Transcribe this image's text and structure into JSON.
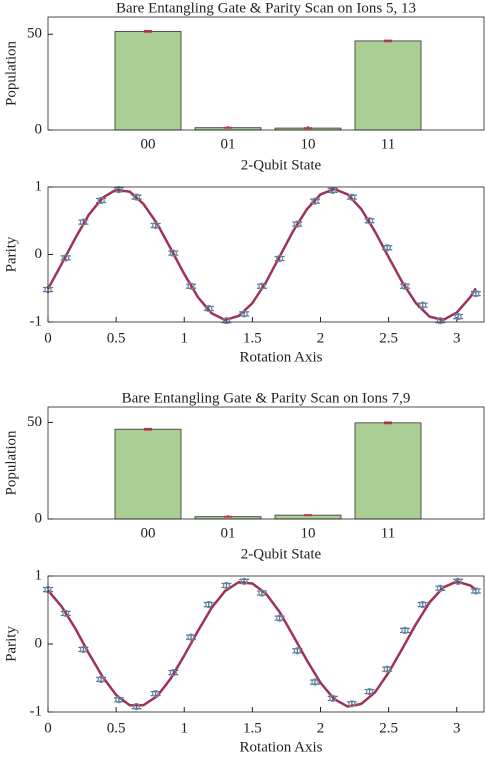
{
  "chart_data": [
    {
      "type": "bar",
      "title": "Bare Entangling Gate & Parity Scan on Ions 5, 13",
      "xlabel": "2-Qubit State",
      "ylabel": "Population",
      "categories": [
        "00",
        "01",
        "10",
        "11"
      ],
      "values": [
        51.5,
        1.2,
        1.0,
        46.5
      ],
      "errors": [
        0.4,
        0.2,
        0.2,
        0.4
      ],
      "color": "#a9cf94",
      "error_color": "#c8324a",
      "ylim": [
        0,
        59
      ],
      "yticks": [
        0,
        50
      ]
    },
    {
      "type": "line",
      "xlabel": "Rotation Axis",
      "ylabel": "Parity",
      "series": [
        {
          "color": "#6d8fa8",
          "marker": "circle",
          "x": [
            0,
            0.13,
            0.26,
            0.39,
            0.52,
            0.65,
            0.79,
            0.92,
            1.05,
            1.18,
            1.31,
            1.44,
            1.57,
            1.7,
            1.83,
            1.96,
            2.09,
            2.23,
            2.36,
            2.49,
            2.62,
            2.75,
            2.88,
            3.01,
            3.14
          ],
          "values": [
            -0.52,
            -0.05,
            0.48,
            0.8,
            0.96,
            0.85,
            0.43,
            0.02,
            -0.47,
            -0.8,
            -0.98,
            -0.88,
            -0.47,
            -0.06,
            0.45,
            0.79,
            0.95,
            0.85,
            0.5,
            0.1,
            -0.47,
            -0.75,
            -0.98,
            -0.92,
            -0.58
          ],
          "errors": [
            0.03,
            0.03,
            0.03,
            0.03,
            0.03,
            0.03,
            0.03,
            0.03,
            0.03,
            0.03,
            0.03,
            0.03,
            0.03,
            0.03,
            0.03,
            0.03,
            0.03,
            0.03,
            0.03,
            0.03,
            0.03,
            0.03,
            0.03,
            0.03,
            0.03
          ]
        },
        {
          "color": "#a0325a",
          "x": [
            0,
            0.1,
            0.2,
            0.3,
            0.4,
            0.5,
            0.6,
            0.7,
            0.8,
            0.9,
            1.0,
            1.1,
            1.2,
            1.3,
            1.4,
            1.5,
            1.6,
            1.7,
            1.8,
            1.9,
            2.0,
            2.1,
            2.2,
            2.3,
            2.4,
            2.5,
            2.6,
            2.7,
            2.8,
            2.9,
            3.0,
            3.1,
            3.14
          ],
          "values": [
            -0.51,
            -0.14,
            0.24,
            0.59,
            0.84,
            0.96,
            0.93,
            0.75,
            0.46,
            0.09,
            -0.29,
            -0.63,
            -0.87,
            -0.97,
            -0.91,
            -0.72,
            -0.41,
            -0.03,
            0.35,
            0.67,
            0.89,
            0.97,
            0.89,
            0.67,
            0.34,
            -0.04,
            -0.41,
            -0.72,
            -0.92,
            -0.97,
            -0.86,
            -0.63,
            -0.5
          ]
        }
      ],
      "xlim": [
        0,
        3.2
      ],
      "xticks": [
        0,
        0.5,
        1,
        1.5,
        2,
        2.5,
        3
      ],
      "ylim": [
        -1,
        1
      ],
      "yticks": [
        -1,
        0,
        1
      ]
    },
    {
      "type": "bar",
      "title": "Bare Entangling Gate & Parity Scan on Ions 7,9",
      "xlabel": "2-Qubit State",
      "ylabel": "Population",
      "categories": [
        "00",
        "01",
        "10",
        "11"
      ],
      "values": [
        46.5,
        1.2,
        2.0,
        49.8
      ],
      "errors": [
        0.4,
        0.2,
        0.2,
        0.4
      ],
      "color": "#a9cf94",
      "error_color": "#c8324a",
      "ylim": [
        0,
        58
      ],
      "yticks": [
        0,
        50
      ]
    },
    {
      "type": "line",
      "xlabel": "Rotation Axis",
      "ylabel": "Parity",
      "series": [
        {
          "color": "#6d8fa8",
          "marker": "circle",
          "x": [
            0,
            0.13,
            0.26,
            0.39,
            0.52,
            0.65,
            0.79,
            0.92,
            1.05,
            1.18,
            1.31,
            1.44,
            1.57,
            1.7,
            1.83,
            1.96,
            2.09,
            2.23,
            2.36,
            2.49,
            2.62,
            2.75,
            2.88,
            3.01,
            3.14
          ],
          "values": [
            0.8,
            0.45,
            -0.08,
            -0.52,
            -0.82,
            -0.92,
            -0.73,
            -0.42,
            0.1,
            0.58,
            0.86,
            0.92,
            0.75,
            0.38,
            -0.1,
            -0.56,
            -0.8,
            -0.88,
            -0.7,
            -0.37,
            0.2,
            0.58,
            0.82,
            0.92,
            0.78
          ],
          "errors": [
            0.03,
            0.03,
            0.03,
            0.03,
            0.03,
            0.03,
            0.03,
            0.03,
            0.03,
            0.03,
            0.03,
            0.03,
            0.03,
            0.03,
            0.03,
            0.03,
            0.03,
            0.03,
            0.03,
            0.03,
            0.03,
            0.03,
            0.03,
            0.03,
            0.03
          ]
        },
        {
          "color": "#a0325a",
          "x": [
            0,
            0.1,
            0.2,
            0.3,
            0.4,
            0.5,
            0.6,
            0.7,
            0.8,
            0.9,
            1.0,
            1.1,
            1.2,
            1.3,
            1.4,
            1.5,
            1.6,
            1.7,
            1.8,
            1.9,
            2.0,
            2.1,
            2.2,
            2.3,
            2.4,
            2.5,
            2.6,
            2.7,
            2.8,
            2.9,
            3.0,
            3.1,
            3.14
          ],
          "values": [
            0.79,
            0.55,
            0.23,
            -0.14,
            -0.48,
            -0.75,
            -0.9,
            -0.9,
            -0.77,
            -0.51,
            -0.17,
            0.19,
            0.53,
            0.78,
            0.91,
            0.89,
            0.74,
            0.47,
            0.12,
            -0.24,
            -0.57,
            -0.81,
            -0.92,
            -0.88,
            -0.71,
            -0.42,
            -0.07,
            0.29,
            0.61,
            0.83,
            0.92,
            0.86,
            0.8
          ]
        }
      ],
      "xlim": [
        0,
        3.2
      ],
      "xticks": [
        0,
        0.5,
        1,
        1.5,
        2,
        2.5,
        3
      ],
      "ylim": [
        -1,
        1
      ],
      "yticks": [
        -1,
        0,
        1
      ]
    }
  ]
}
